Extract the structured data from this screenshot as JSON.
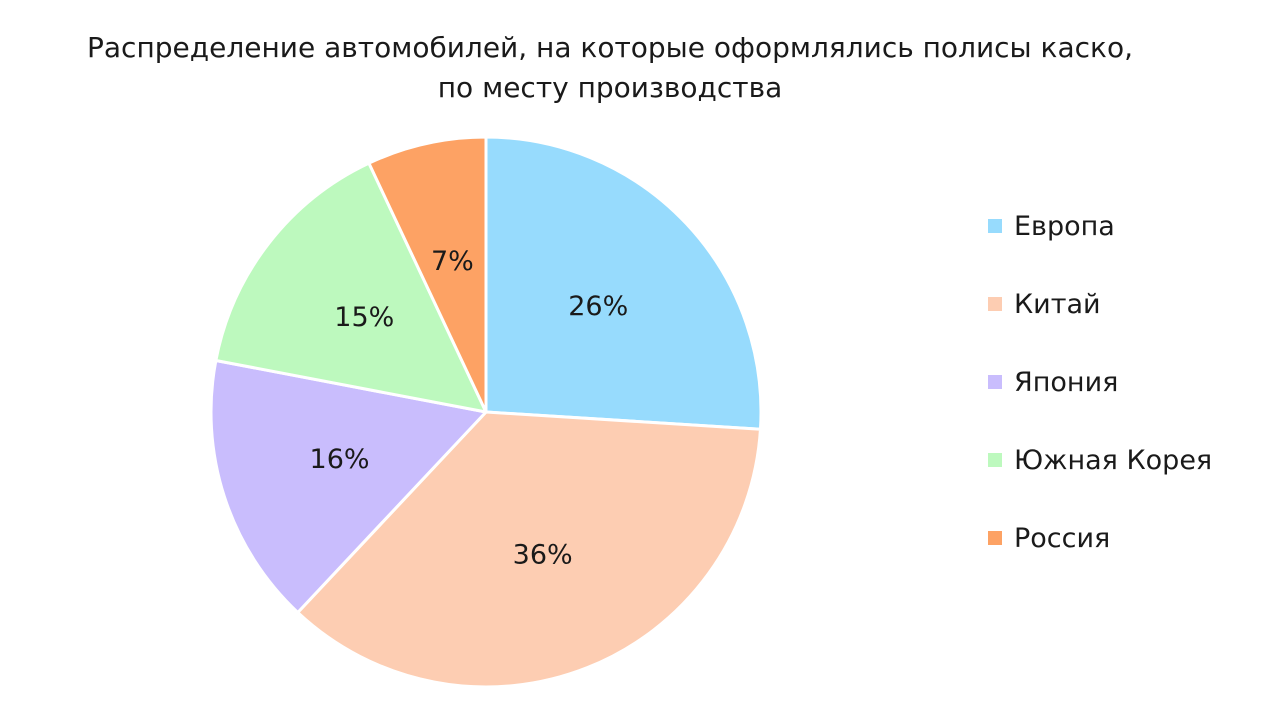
{
  "chart_data": {
    "type": "pie",
    "title_line1": "Распределение автомобилей, на которые оформлялись полисы каско,",
    "title_line2": "по месту производства",
    "legend_position": "right",
    "slices": [
      {
        "name": "Европа",
        "value": 26,
        "label": "26%",
        "color": "#97dbfd"
      },
      {
        "name": "Китай",
        "value": 36,
        "label": "36%",
        "color": "#fdcdb2"
      },
      {
        "name": "Япония",
        "value": 16,
        "label": "16%",
        "color": "#c9bdfd"
      },
      {
        "name": "Южная Корея",
        "value": 15,
        "label": "15%",
        "color": "#bdf9be"
      },
      {
        "name": "Россия",
        "value": 7,
        "label": "7%",
        "color": "#fda264"
      }
    ]
  }
}
